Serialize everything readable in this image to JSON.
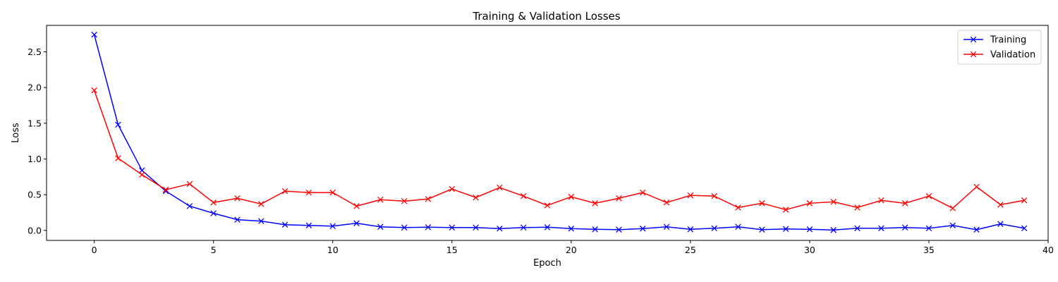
{
  "chart_data": {
    "type": "line",
    "title": "Training & Validation Losses",
    "xlabel": "Epoch",
    "ylabel": "Loss",
    "xlim": [
      -2,
      40
    ],
    "ylim": [
      -0.14,
      2.87
    ],
    "xticks": [
      0,
      5,
      10,
      15,
      20,
      25,
      30,
      35,
      40
    ],
    "yticks": [
      0.0,
      0.5,
      1.0,
      1.5,
      2.0,
      2.5
    ],
    "xtick_labels": [
      "0",
      "5",
      "10",
      "15",
      "20",
      "25",
      "30",
      "35",
      "40"
    ],
    "ytick_labels": [
      "0.0",
      "0.5",
      "1.0",
      "1.5",
      "2.0",
      "2.5"
    ],
    "grid": false,
    "legend_position": "top-right",
    "x": [
      0,
      1,
      2,
      3,
      4,
      5,
      6,
      7,
      8,
      9,
      10,
      11,
      12,
      13,
      14,
      15,
      16,
      17,
      18,
      19,
      20,
      21,
      22,
      23,
      24,
      25,
      26,
      27,
      28,
      29,
      30,
      31,
      32,
      33,
      34,
      35,
      36,
      37,
      38,
      39
    ],
    "series": [
      {
        "name": "Training",
        "color": "#0000ff",
        "marker": "x",
        "values": [
          2.74,
          1.48,
          0.84,
          0.55,
          0.34,
          0.24,
          0.15,
          0.13,
          0.08,
          0.07,
          0.06,
          0.1,
          0.05,
          0.04,
          0.045,
          0.04,
          0.04,
          0.025,
          0.04,
          0.045,
          0.025,
          0.015,
          0.01,
          0.025,
          0.05,
          0.015,
          0.03,
          0.05,
          0.01,
          0.02,
          0.015,
          0.005,
          0.03,
          0.03,
          0.04,
          0.03,
          0.07,
          0.01,
          0.09,
          0.03
        ]
      },
      {
        "name": "Validation",
        "color": "#ff0000",
        "marker": "x",
        "values": [
          1.96,
          1.01,
          0.78,
          0.57,
          0.65,
          0.39,
          0.45,
          0.37,
          0.55,
          0.53,
          0.53,
          0.34,
          0.43,
          0.41,
          0.44,
          0.58,
          0.46,
          0.6,
          0.48,
          0.35,
          0.47,
          0.38,
          0.45,
          0.53,
          0.39,
          0.49,
          0.48,
          0.32,
          0.38,
          0.29,
          0.38,
          0.4,
          0.32,
          0.42,
          0.38,
          0.48,
          0.31,
          0.61,
          0.36,
          0.42
        ]
      }
    ]
  }
}
